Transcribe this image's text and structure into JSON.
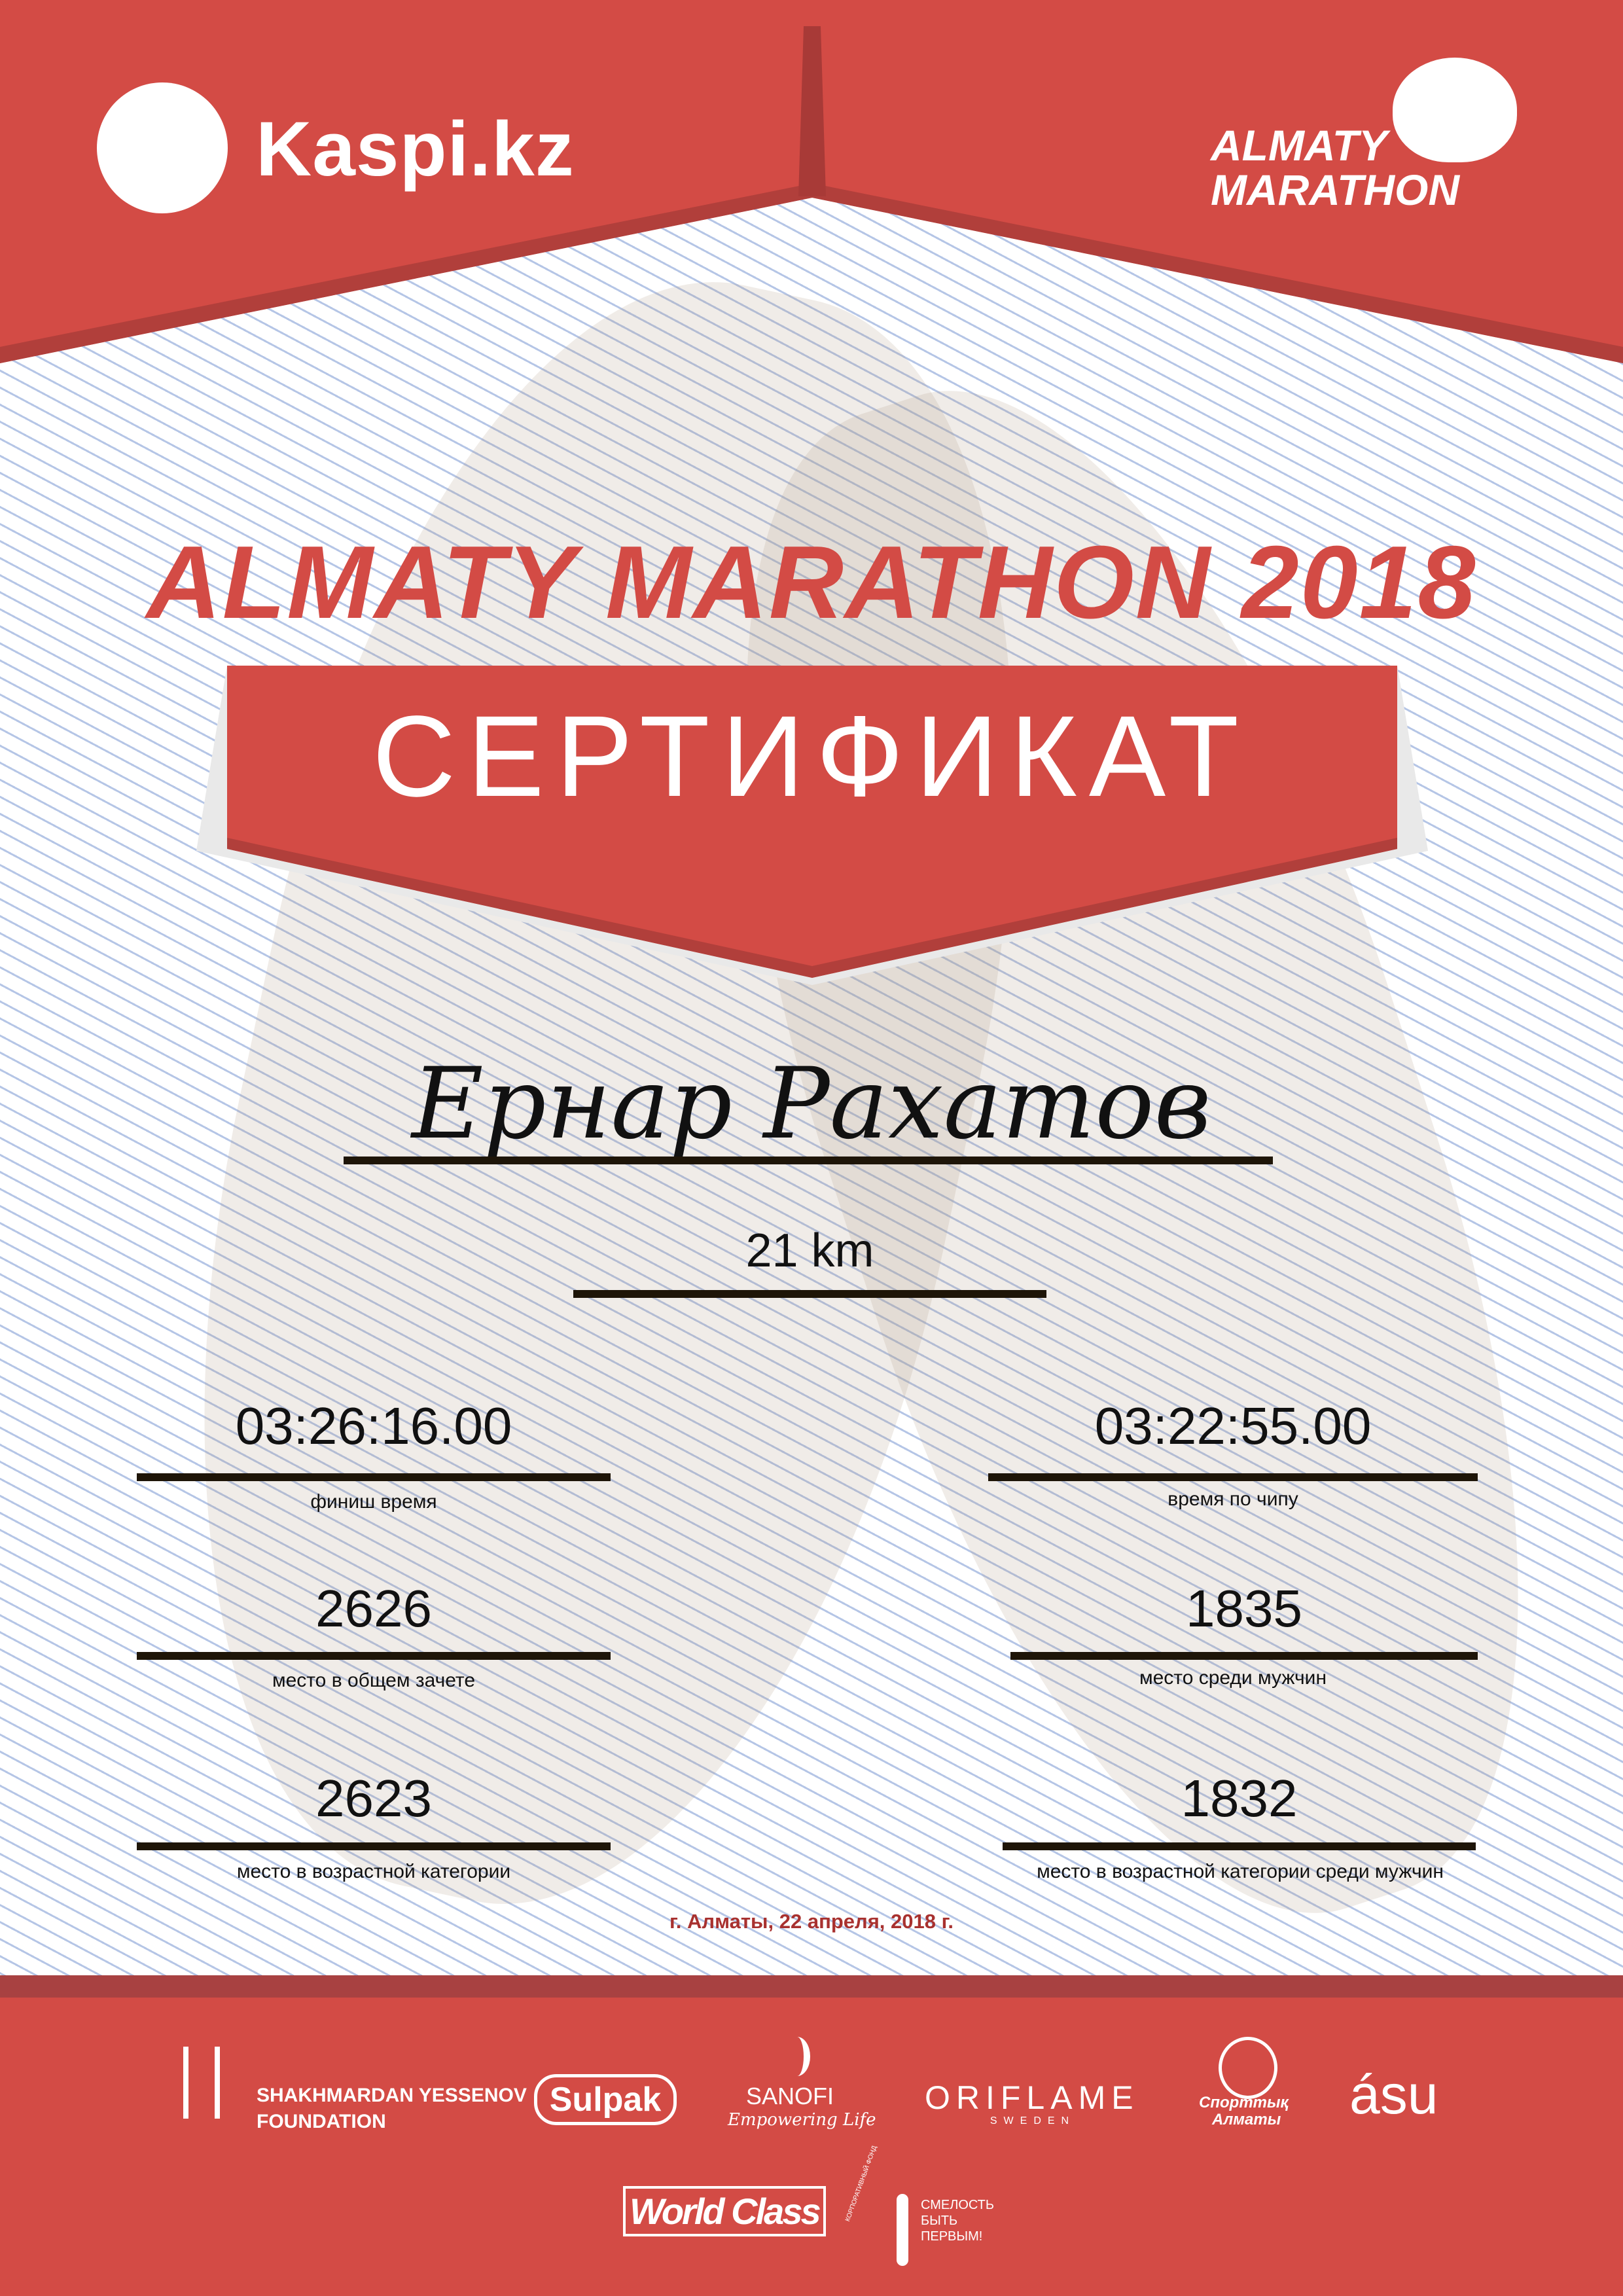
{
  "colors": {
    "brand_red": "#d34b45",
    "dark_red": "#a84141",
    "date_red": "#a8312f",
    "rule": "#1e1508"
  },
  "header": {
    "sponsor_logo": "Kaspi.kz",
    "event_logo": {
      "line1": "ALMATY",
      "line2": "MARATHON"
    }
  },
  "title": "ALMATY MARATHON 2018",
  "banner": "СЕРТИФИКАТ",
  "participant": {
    "name": "Ернар Рахатов",
    "distance": "21 km"
  },
  "stats": [
    {
      "value": "03:26:16.00",
      "label": "финиш время"
    },
    {
      "value": "03:22:55.00",
      "label": "время по чипу"
    },
    {
      "value": "2626",
      "label": "место в общем зачете"
    },
    {
      "value": "1835",
      "label": "место среди мужчин"
    },
    {
      "value": "2623",
      "label": "место в возрастной категории"
    },
    {
      "value": "1832",
      "label": "место в возрастной категории среди мужчин"
    }
  ],
  "date": "г. Алматы, 22 апреля, 2018 г.",
  "footer": {
    "yessenov": {
      "line1": "SHAKHMARDAN YESSENOV",
      "line2": "FOUNDATION"
    },
    "sulpak": "Sulpak",
    "sanofi": {
      "name": "SANOFI",
      "tagline": "Empowering Life"
    },
    "oriflame": {
      "name": "ORIFLAME",
      "sub": "SWEDEN"
    },
    "sport_almaty": {
      "line1": "Спорттық",
      "line2": "Алматы"
    },
    "asu": "ásu",
    "worldclass": "World Class",
    "fund": {
      "ring": "КОРПОРАТИВНЫЙ ФОНД",
      "line1": "СМЕЛОСТЬ",
      "line2": "БЫТЬ",
      "line3": "ПЕРВЫМ!"
    }
  }
}
